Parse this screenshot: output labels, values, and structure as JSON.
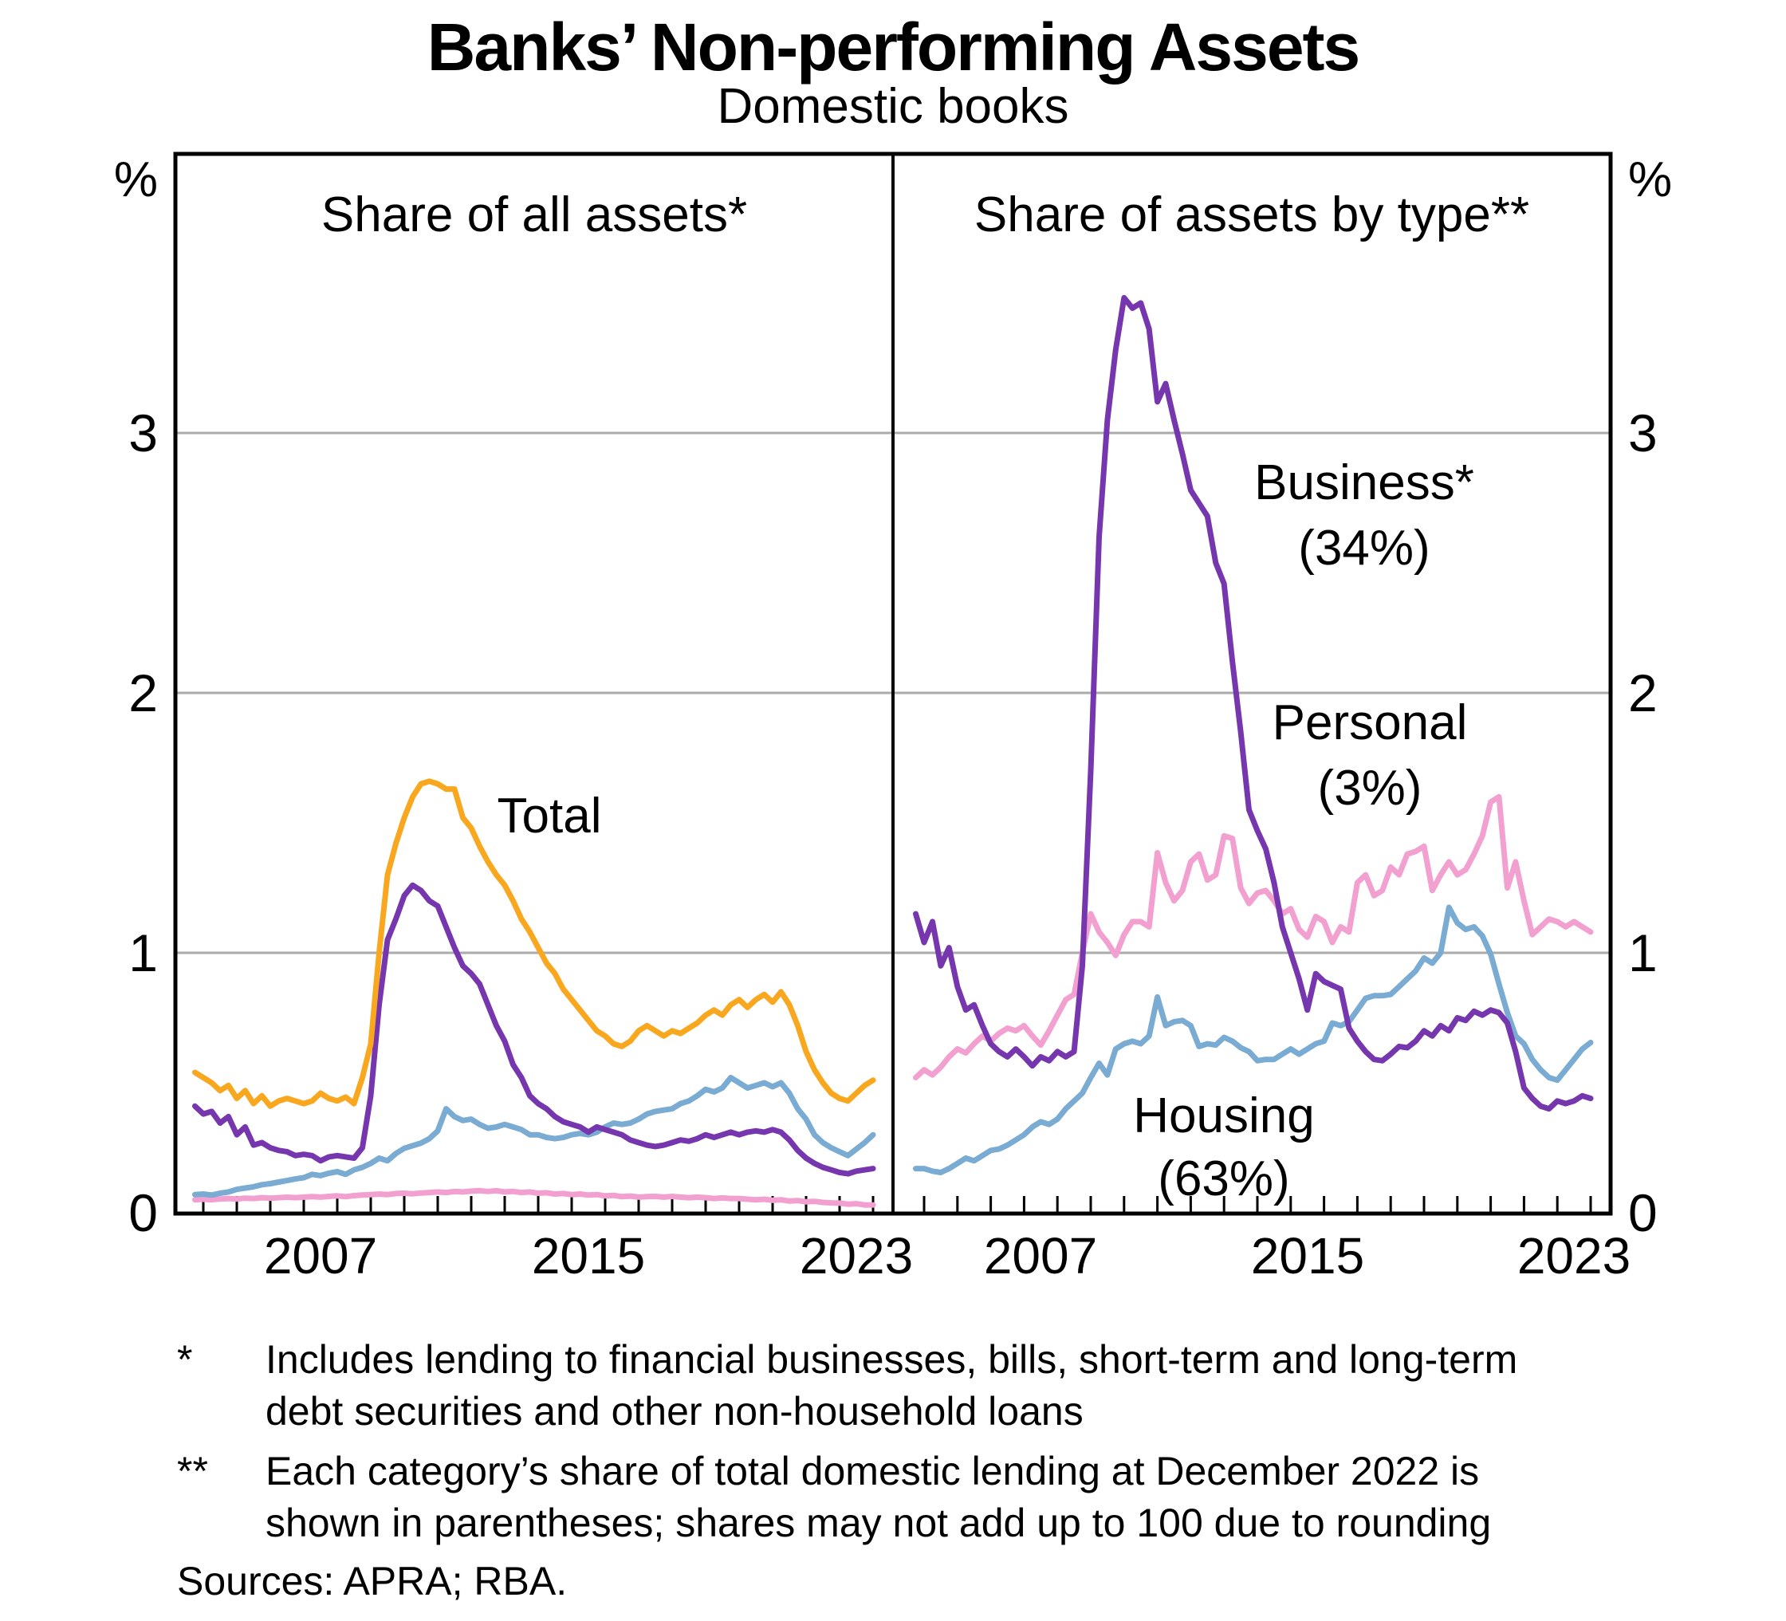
{
  "title": "Banks’ Non-performing Assets",
  "subtitle": "Domestic books",
  "axis": {
    "percent": "%",
    "yticks": [
      "0",
      "1",
      "2",
      "3"
    ],
    "xticks": [
      "2007",
      "2015",
      "2023"
    ]
  },
  "footnotes": [
    {
      "marker": "*",
      "lines": [
        "Includes lending to financial businesses, bills, short-term and long-term",
        "debt securities and other non-household loans"
      ]
    },
    {
      "marker": "**",
      "lines": [
        "Each category’s share of total domestic lending at December 2022 is",
        "shown in parentheses; shares may not add up to 100 due to rounding"
      ]
    }
  ],
  "sources": "Sources: APRA; RBA.",
  "colors": {
    "total": "#F8A71F",
    "business": "#7636AE",
    "housing": "#79ABD3",
    "personal": "#F2A0CF",
    "gridline": "#ababab",
    "frame": "#000000"
  },
  "chart_data": [
    {
      "type": "line",
      "title": "Share of all assets*",
      "ylabel": "%",
      "ylim": [
        0,
        4.07
      ],
      "yticks": [
        0,
        1,
        2,
        3
      ],
      "x_range": [
        2003.1,
        2024.6
      ],
      "x_tick_interval": 1,
      "xtick_label_years": [
        2007.5,
        2015.5,
        2023.5
      ],
      "x_start": 2003.75,
      "x_step": 0.25,
      "grid": "horizontal",
      "legend": "direct-labels",
      "series": [
        {
          "name": "personal",
          "label": "Personal",
          "color": "#F2A0CF",
          "values": [
            0.05,
            0.052,
            0.05,
            0.053,
            0.055,
            0.053,
            0.056,
            0.055,
            0.058,
            0.056,
            0.058,
            0.06,
            0.058,
            0.06,
            0.062,
            0.06,
            0.063,
            0.065,
            0.062,
            0.066,
            0.068,
            0.07,
            0.072,
            0.07,
            0.074,
            0.075,
            0.073,
            0.076,
            0.078,
            0.08,
            0.078,
            0.082,
            0.08,
            0.083,
            0.085,
            0.082,
            0.085,
            0.08,
            0.082,
            0.078,
            0.08,
            0.075,
            0.077,
            0.072,
            0.074,
            0.07,
            0.072,
            0.068,
            0.07,
            0.065,
            0.067,
            0.062,
            0.064,
            0.06,
            0.062,
            0.063,
            0.06,
            0.063,
            0.06,
            0.058,
            0.06,
            0.058,
            0.055,
            0.057,
            0.055,
            0.055,
            0.052,
            0.05,
            0.052,
            0.048,
            0.05,
            0.045,
            0.047,
            0.042,
            0.044,
            0.04,
            0.038,
            0.037,
            0.033,
            0.035,
            0.03,
            0.03
          ]
        },
        {
          "name": "housing",
          "label": "Housing",
          "color": "#79ABD3",
          "values": [
            0.07,
            0.072,
            0.068,
            0.075,
            0.08,
            0.09,
            0.095,
            0.1,
            0.108,
            0.112,
            0.118,
            0.124,
            0.13,
            0.135,
            0.148,
            0.143,
            0.152,
            0.158,
            0.148,
            0.165,
            0.175,
            0.19,
            0.21,
            0.2,
            0.228,
            0.248,
            0.258,
            0.268,
            0.285,
            0.315,
            0.4,
            0.37,
            0.355,
            0.36,
            0.34,
            0.325,
            0.33,
            0.34,
            0.33,
            0.32,
            0.3,
            0.3,
            0.29,
            0.285,
            0.29,
            0.3,
            0.305,
            0.3,
            0.31,
            0.33,
            0.345,
            0.34,
            0.345,
            0.36,
            0.38,
            0.39,
            0.395,
            0.4,
            0.42,
            0.43,
            0.45,
            0.475,
            0.465,
            0.48,
            0.52,
            0.5,
            0.48,
            0.49,
            0.5,
            0.485,
            0.5,
            0.46,
            0.4,
            0.36,
            0.3,
            0.27,
            0.25,
            0.235,
            0.22,
            0.245,
            0.27,
            0.3
          ]
        },
        {
          "name": "business",
          "label": "Business",
          "color": "#7636AE",
          "values": [
            0.41,
            0.38,
            0.39,
            0.345,
            0.37,
            0.3,
            0.33,
            0.26,
            0.27,
            0.25,
            0.24,
            0.235,
            0.22,
            0.225,
            0.22,
            0.2,
            0.215,
            0.22,
            0.215,
            0.21,
            0.25,
            0.45,
            0.8,
            1.05,
            1.13,
            1.22,
            1.26,
            1.24,
            1.2,
            1.18,
            1.1,
            1.02,
            0.95,
            0.92,
            0.88,
            0.8,
            0.72,
            0.66,
            0.57,
            0.52,
            0.45,
            0.42,
            0.4,
            0.37,
            0.35,
            0.34,
            0.33,
            0.31,
            0.33,
            0.32,
            0.31,
            0.3,
            0.28,
            0.27,
            0.26,
            0.255,
            0.26,
            0.27,
            0.28,
            0.275,
            0.285,
            0.3,
            0.29,
            0.3,
            0.31,
            0.3,
            0.31,
            0.315,
            0.31,
            0.32,
            0.31,
            0.28,
            0.24,
            0.21,
            0.19,
            0.175,
            0.165,
            0.155,
            0.15,
            0.16,
            0.165,
            0.17
          ]
        },
        {
          "name": "total",
          "label": "Total",
          "color": "#F8A71F",
          "values": [
            0.54,
            0.52,
            0.5,
            0.47,
            0.49,
            0.44,
            0.47,
            0.42,
            0.45,
            0.41,
            0.43,
            0.44,
            0.43,
            0.42,
            0.43,
            0.46,
            0.44,
            0.43,
            0.445,
            0.42,
            0.52,
            0.65,
            1.0,
            1.3,
            1.42,
            1.52,
            1.6,
            1.65,
            1.66,
            1.65,
            1.63,
            1.63,
            1.52,
            1.48,
            1.41,
            1.35,
            1.3,
            1.26,
            1.2,
            1.13,
            1.08,
            1.02,
            0.96,
            0.92,
            0.86,
            0.82,
            0.78,
            0.74,
            0.7,
            0.68,
            0.65,
            0.64,
            0.66,
            0.7,
            0.72,
            0.7,
            0.68,
            0.7,
            0.69,
            0.71,
            0.73,
            0.76,
            0.78,
            0.76,
            0.8,
            0.82,
            0.79,
            0.82,
            0.84,
            0.81,
            0.85,
            0.8,
            0.72,
            0.62,
            0.55,
            0.5,
            0.46,
            0.44,
            0.43,
            0.46,
            0.49,
            0.51
          ]
        }
      ]
    },
    {
      "type": "line",
      "title": "Share of assets by type**",
      "ylabel": "%",
      "ylim": [
        0,
        4.07
      ],
      "yticks": [
        0,
        1,
        2,
        3
      ],
      "x_range": [
        2003.1,
        2024.6
      ],
      "x_tick_interval": 1,
      "xtick_label_years": [
        2007.5,
        2015.5,
        2023.5
      ],
      "x_start": 2003.75,
      "x_step": 0.25,
      "grid": "horizontal",
      "legend": "direct-labels",
      "series": [
        {
          "name": "housing",
          "label": "Housing",
          "share": "(63%)",
          "color": "#79ABD3",
          "values": [
            0.17,
            0.17,
            0.16,
            0.155,
            0.17,
            0.19,
            0.21,
            0.2,
            0.22,
            0.24,
            0.245,
            0.26,
            0.28,
            0.3,
            0.33,
            0.35,
            0.34,
            0.36,
            0.4,
            0.43,
            0.46,
            0.52,
            0.575,
            0.53,
            0.63,
            0.65,
            0.66,
            0.65,
            0.68,
            0.83,
            0.72,
            0.735,
            0.74,
            0.72,
            0.64,
            0.65,
            0.645,
            0.675,
            0.66,
            0.635,
            0.62,
            0.585,
            0.59,
            0.59,
            0.61,
            0.63,
            0.61,
            0.63,
            0.65,
            0.66,
            0.73,
            0.72,
            0.735,
            0.78,
            0.825,
            0.835,
            0.835,
            0.84,
            0.87,
            0.9,
            0.93,
            0.98,
            0.96,
            1.0,
            1.175,
            1.115,
            1.09,
            1.1,
            1.065,
            0.995,
            0.88,
            0.77,
            0.68,
            0.65,
            0.59,
            0.55,
            0.52,
            0.51,
            0.55,
            0.59,
            0.63,
            0.655
          ]
        },
        {
          "name": "personal",
          "label": "Personal",
          "share": "(3%)",
          "color": "#F2A0CF",
          "values": [
            0.52,
            0.55,
            0.53,
            0.56,
            0.6,
            0.63,
            0.615,
            0.65,
            0.68,
            0.66,
            0.69,
            0.71,
            0.7,
            0.72,
            0.68,
            0.645,
            0.7,
            0.76,
            0.82,
            0.84,
            1.0,
            1.15,
            1.08,
            1.04,
            0.99,
            1.07,
            1.12,
            1.12,
            1.1,
            1.385,
            1.27,
            1.2,
            1.24,
            1.35,
            1.38,
            1.28,
            1.3,
            1.45,
            1.44,
            1.25,
            1.19,
            1.23,
            1.24,
            1.2,
            1.15,
            1.17,
            1.09,
            1.06,
            1.14,
            1.12,
            1.04,
            1.1,
            1.08,
            1.27,
            1.3,
            1.22,
            1.24,
            1.33,
            1.3,
            1.38,
            1.39,
            1.41,
            1.24,
            1.3,
            1.35,
            1.3,
            1.32,
            1.38,
            1.45,
            1.58,
            1.6,
            1.25,
            1.35,
            1.2,
            1.07,
            1.1,
            1.13,
            1.12,
            1.1,
            1.12,
            1.1,
            1.08
          ]
        },
        {
          "name": "business",
          "label": "Business*",
          "share": "(34%)",
          "color": "#7636AE",
          "values": [
            1.15,
            1.04,
            1.12,
            0.95,
            1.02,
            0.87,
            0.78,
            0.8,
            0.72,
            0.65,
            0.62,
            0.6,
            0.63,
            0.6,
            0.565,
            0.6,
            0.585,
            0.62,
            0.6,
            0.62,
            0.95,
            1.7,
            2.6,
            3.05,
            3.32,
            3.52,
            3.48,
            3.5,
            3.4,
            3.12,
            3.19,
            3.05,
            2.92,
            2.78,
            2.73,
            2.68,
            2.5,
            2.42,
            2.12,
            1.85,
            1.55,
            1.47,
            1.4,
            1.27,
            1.1,
            1.0,
            0.9,
            0.78,
            0.92,
            0.89,
            0.875,
            0.86,
            0.71,
            0.66,
            0.62,
            0.59,
            0.585,
            0.61,
            0.64,
            0.635,
            0.66,
            0.7,
            0.68,
            0.72,
            0.7,
            0.75,
            0.74,
            0.775,
            0.76,
            0.78,
            0.77,
            0.73,
            0.62,
            0.48,
            0.44,
            0.41,
            0.4,
            0.43,
            0.42,
            0.43,
            0.45,
            0.44
          ]
        }
      ]
    }
  ]
}
